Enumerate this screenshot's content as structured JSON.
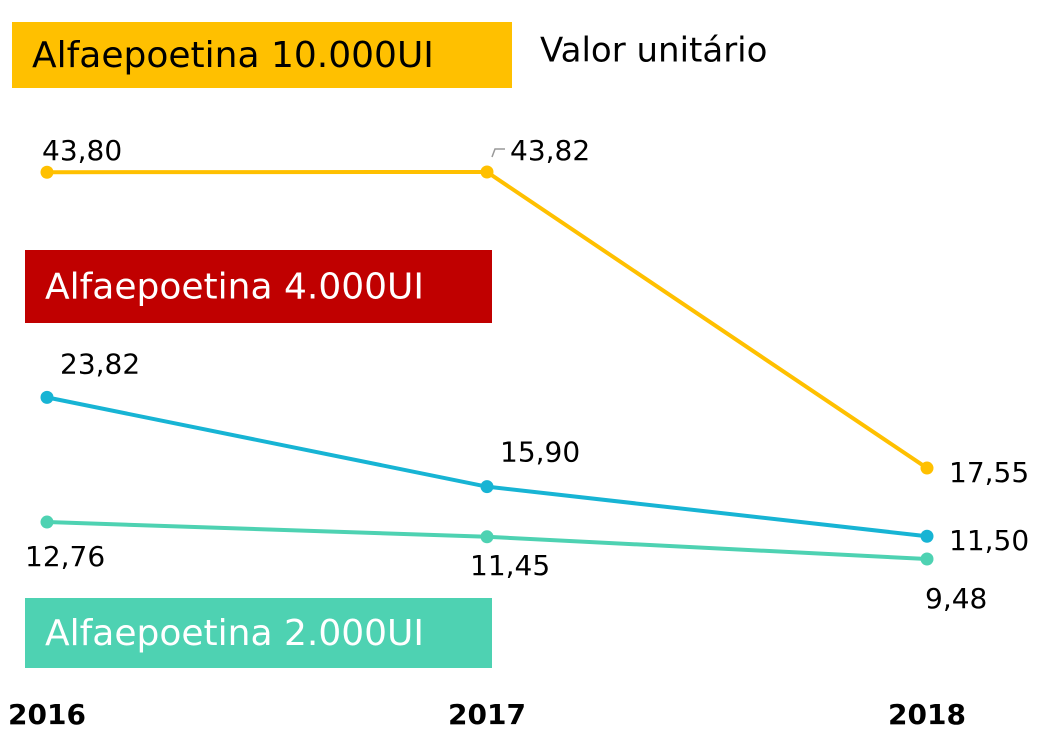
{
  "chart_data": {
    "type": "line",
    "title": "Valor unitário",
    "categories": [
      "2016",
      "2017",
      "2018"
    ],
    "series": [
      {
        "name": "Alfaepoetina 10.000UI",
        "color": "#FFC000",
        "legend_color": "#FFC000",
        "legend_text_color": "#000000",
        "values": [
          43.8,
          43.82,
          17.55
        ],
        "value_labels": [
          "43,80",
          "43,82",
          "17,55"
        ]
      },
      {
        "name": "Alfaepoetina 4.000UI",
        "color": "#17B4D4",
        "legend_color": "#C00000",
        "legend_text_color": "#FFFFFF",
        "values": [
          23.82,
          15.9,
          11.5
        ],
        "value_labels": [
          "23,82",
          "15,90",
          "11,50"
        ]
      },
      {
        "name": "Alfaepoetina 2.000UI",
        "color": "#4ED2B2",
        "legend_color": "#4ED2B2",
        "legend_text_color": "#FFFFFF",
        "values": [
          12.76,
          11.45,
          9.48
        ],
        "value_labels": [
          "12,76",
          "11,45",
          "9,48"
        ]
      }
    ]
  }
}
